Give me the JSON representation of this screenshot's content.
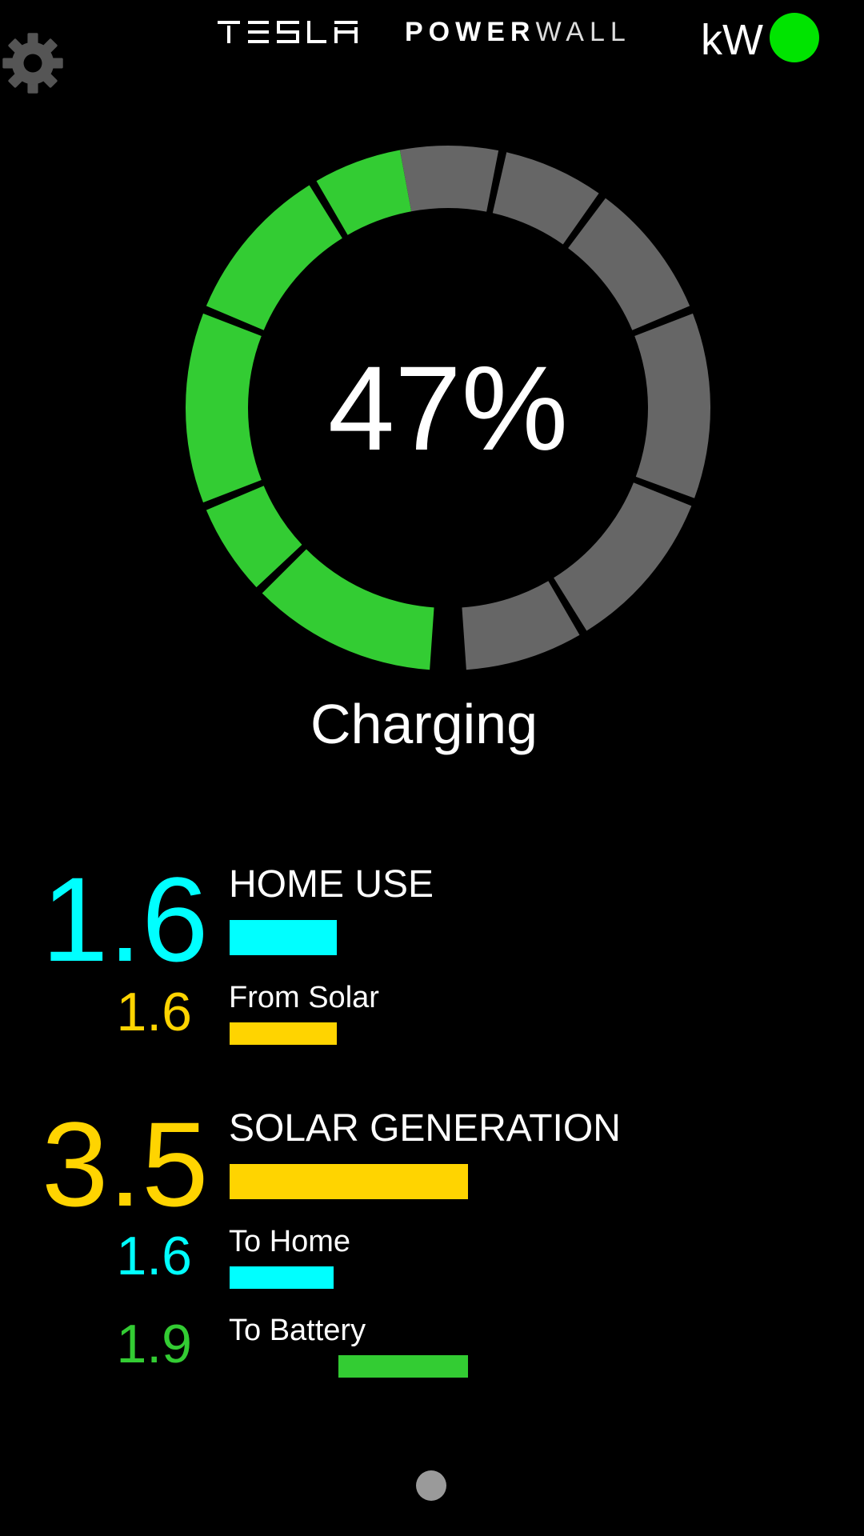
{
  "header": {
    "brand_left": "TESLA",
    "brand_right_bold": "POWER",
    "brand_right_light": "WALL",
    "unit": "kW",
    "status_color": "#00e400",
    "settings_icon": "gear-icon"
  },
  "battery": {
    "percent_label": "47%",
    "charge_fraction": 0.47,
    "state": "Charging",
    "filled_color": "#33cc33",
    "empty_color": "#666666"
  },
  "home_use": {
    "value": "1.6",
    "label": "HOME USE",
    "color": "#00ffff",
    "from_solar": {
      "value": "1.6",
      "label": "From Solar",
      "color": "#ffd400"
    }
  },
  "solar": {
    "value": "3.5",
    "label": "SOLAR GENERATION",
    "color": "#ffd400",
    "to_home": {
      "value": "1.6",
      "label": "To Home",
      "color": "#00ffff"
    },
    "to_battery": {
      "value": "1.9",
      "label": "To Battery",
      "color": "#33cc33"
    }
  },
  "pager": {
    "pages": 1,
    "current": 1
  }
}
